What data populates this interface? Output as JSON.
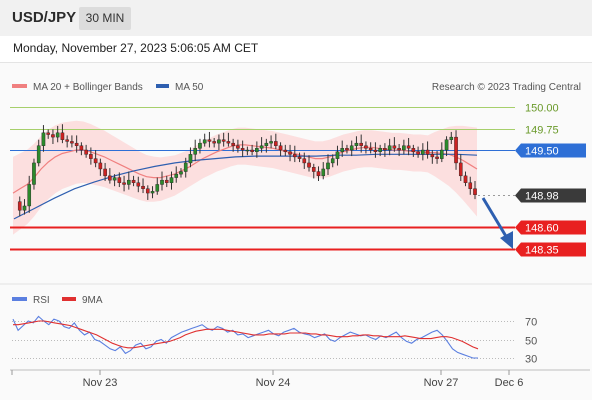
{
  "header": {
    "symbol": "USD/JPY",
    "timeframe": "30 MIN"
  },
  "datetime": "Monday, November 27, 2023 5:06:05 AM CET",
  "legend": {
    "ma20_bb": "MA 20 + Bollinger Bands",
    "ma50": "MA 50",
    "credit": "Research © 2023 Trading Central",
    "rsi": "RSI",
    "rsi_ma": "9MA"
  },
  "colors": {
    "bollinger_fill": "#fbd9d9",
    "ma20": "#f08080",
    "ma50": "#2e5fb0",
    "green_level": "#a6cf6b",
    "blue_level": "#2e6fd6",
    "red_level": "#e82020",
    "current_price": "#3a3a3a",
    "rsi": "#5b7fe0",
    "rsi_ma": "#e03030",
    "candle_up": "#2c8a2c",
    "candle_down": "#cc2222"
  },
  "chart_data": [
    {
      "type": "candlestick",
      "title": "USD/JPY 30 MIN",
      "y_price_range": [
        148.05,
        150.12
      ],
      "levels": [
        {
          "price": 150.0,
          "label": "150.00",
          "kind": "resistance"
        },
        {
          "price": 149.75,
          "label": "149.75",
          "kind": "resistance"
        },
        {
          "price": 149.5,
          "label": "149.50",
          "kind": "pivot"
        },
        {
          "price": 148.98,
          "label": "148.98",
          "kind": "last_price"
        },
        {
          "price": 148.6,
          "label": "148.60",
          "kind": "target"
        },
        {
          "price": 148.35,
          "label": "148.35",
          "kind": "target"
        }
      ],
      "x_tick_labels": [
        "Nov 23",
        "Nov 24",
        "Nov 27",
        "Dec 6"
      ],
      "closes": [
        148.9,
        148.8,
        148.85,
        149.1,
        149.35,
        149.55,
        149.7,
        149.68,
        149.65,
        149.7,
        149.62,
        149.6,
        149.58,
        149.55,
        149.5,
        149.45,
        149.4,
        149.35,
        149.28,
        149.2,
        149.15,
        149.18,
        149.12,
        149.1,
        149.15,
        149.12,
        149.08,
        149.05,
        149.0,
        149.02,
        149.1,
        149.15,
        149.12,
        149.18,
        149.22,
        149.25,
        149.35,
        149.45,
        149.52,
        149.58,
        149.62,
        149.6,
        149.58,
        149.62,
        149.6,
        149.58,
        149.55,
        149.52,
        149.5,
        149.5,
        149.48,
        149.52,
        149.55,
        149.58,
        149.6,
        149.55,
        149.5,
        149.48,
        149.45,
        149.42,
        149.4,
        149.35,
        149.3,
        149.25,
        149.2,
        149.28,
        149.35,
        149.4,
        149.48,
        149.52,
        149.5,
        149.55,
        149.58,
        149.55,
        149.52,
        149.5,
        149.48,
        149.52,
        149.5,
        149.55,
        149.52,
        149.5,
        149.55,
        149.52,
        149.48,
        149.45,
        149.5,
        149.45,
        149.42,
        149.4,
        149.5,
        149.62,
        149.65,
        149.35,
        149.2,
        149.12,
        149.05,
        148.98
      ],
      "ma20": [
        149.0,
        149.05,
        149.1,
        149.18,
        149.28,
        149.36,
        149.42,
        149.46,
        149.48,
        149.5,
        149.5,
        149.48,
        149.45,
        149.42,
        149.38,
        149.34,
        149.3,
        149.26,
        149.22,
        149.19,
        149.18,
        149.18,
        149.2,
        149.22,
        149.26,
        149.3,
        149.35,
        149.4,
        149.44,
        149.48,
        149.51,
        149.54,
        149.56,
        149.56,
        149.55,
        149.54,
        149.53,
        149.52,
        149.5,
        149.48,
        149.46,
        149.44,
        149.42,
        149.4,
        149.4,
        149.42,
        149.45,
        149.48,
        149.5,
        149.52,
        149.53,
        149.53,
        149.52,
        149.51,
        149.5,
        149.5,
        149.49,
        149.48,
        149.48,
        149.47,
        149.47,
        149.46,
        149.45,
        149.42,
        149.38,
        149.33,
        149.28
      ],
      "ma50": [
        148.7,
        148.82,
        148.94,
        149.05,
        149.13,
        149.2,
        149.26,
        149.31,
        149.35,
        149.38,
        149.4,
        149.42,
        149.43,
        149.43,
        149.43,
        149.43,
        149.44,
        149.44,
        149.45,
        149.45,
        149.45,
        149.45,
        149.45,
        149.44
      ],
      "rsi_scale": [
        30,
        50,
        70
      ],
      "rsi": [
        72,
        60,
        65,
        70,
        68,
        75,
        70,
        66,
        72,
        70,
        64,
        62,
        68,
        60,
        55,
        58,
        50,
        48,
        44,
        40,
        38,
        42,
        35,
        38,
        44,
        46,
        40,
        42,
        48,
        50,
        46,
        52,
        55,
        58,
        60,
        62,
        64,
        66,
        62,
        60,
        64,
        62,
        58,
        60,
        55,
        56,
        52,
        54,
        56,
        58,
        60,
        56,
        54,
        58,
        60,
        62,
        58,
        56,
        55,
        52,
        54,
        56,
        50,
        48,
        52,
        55,
        58,
        56,
        54,
        55,
        52,
        50,
        54,
        52,
        55,
        58,
        52,
        48,
        46,
        50,
        52,
        55,
        58,
        60,
        55,
        48,
        40,
        36,
        34,
        32,
        30,
        30
      ],
      "rsi_ma": [
        66,
        66,
        67,
        68,
        69,
        70,
        70,
        69,
        68,
        67,
        66,
        65,
        63,
        61,
        59,
        57,
        55,
        52,
        49,
        46,
        44,
        42,
        41,
        41,
        42,
        43,
        44,
        45,
        46,
        47,
        48,
        50,
        52,
        55,
        57,
        59,
        60,
        61,
        61,
        61,
        61,
        60,
        59,
        58,
        57,
        56,
        55,
        55,
        55,
        56,
        56,
        56,
        56,
        57,
        57,
        57,
        57,
        56,
        56,
        55,
        55,
        54,
        53,
        53,
        53,
        54,
        54,
        55,
        55,
        54,
        54,
        53,
        53,
        53,
        53,
        54,
        53,
        52,
        51,
        51,
        51,
        52,
        53,
        53,
        52,
        50,
        48,
        45,
        42,
        40
      ]
    }
  ]
}
